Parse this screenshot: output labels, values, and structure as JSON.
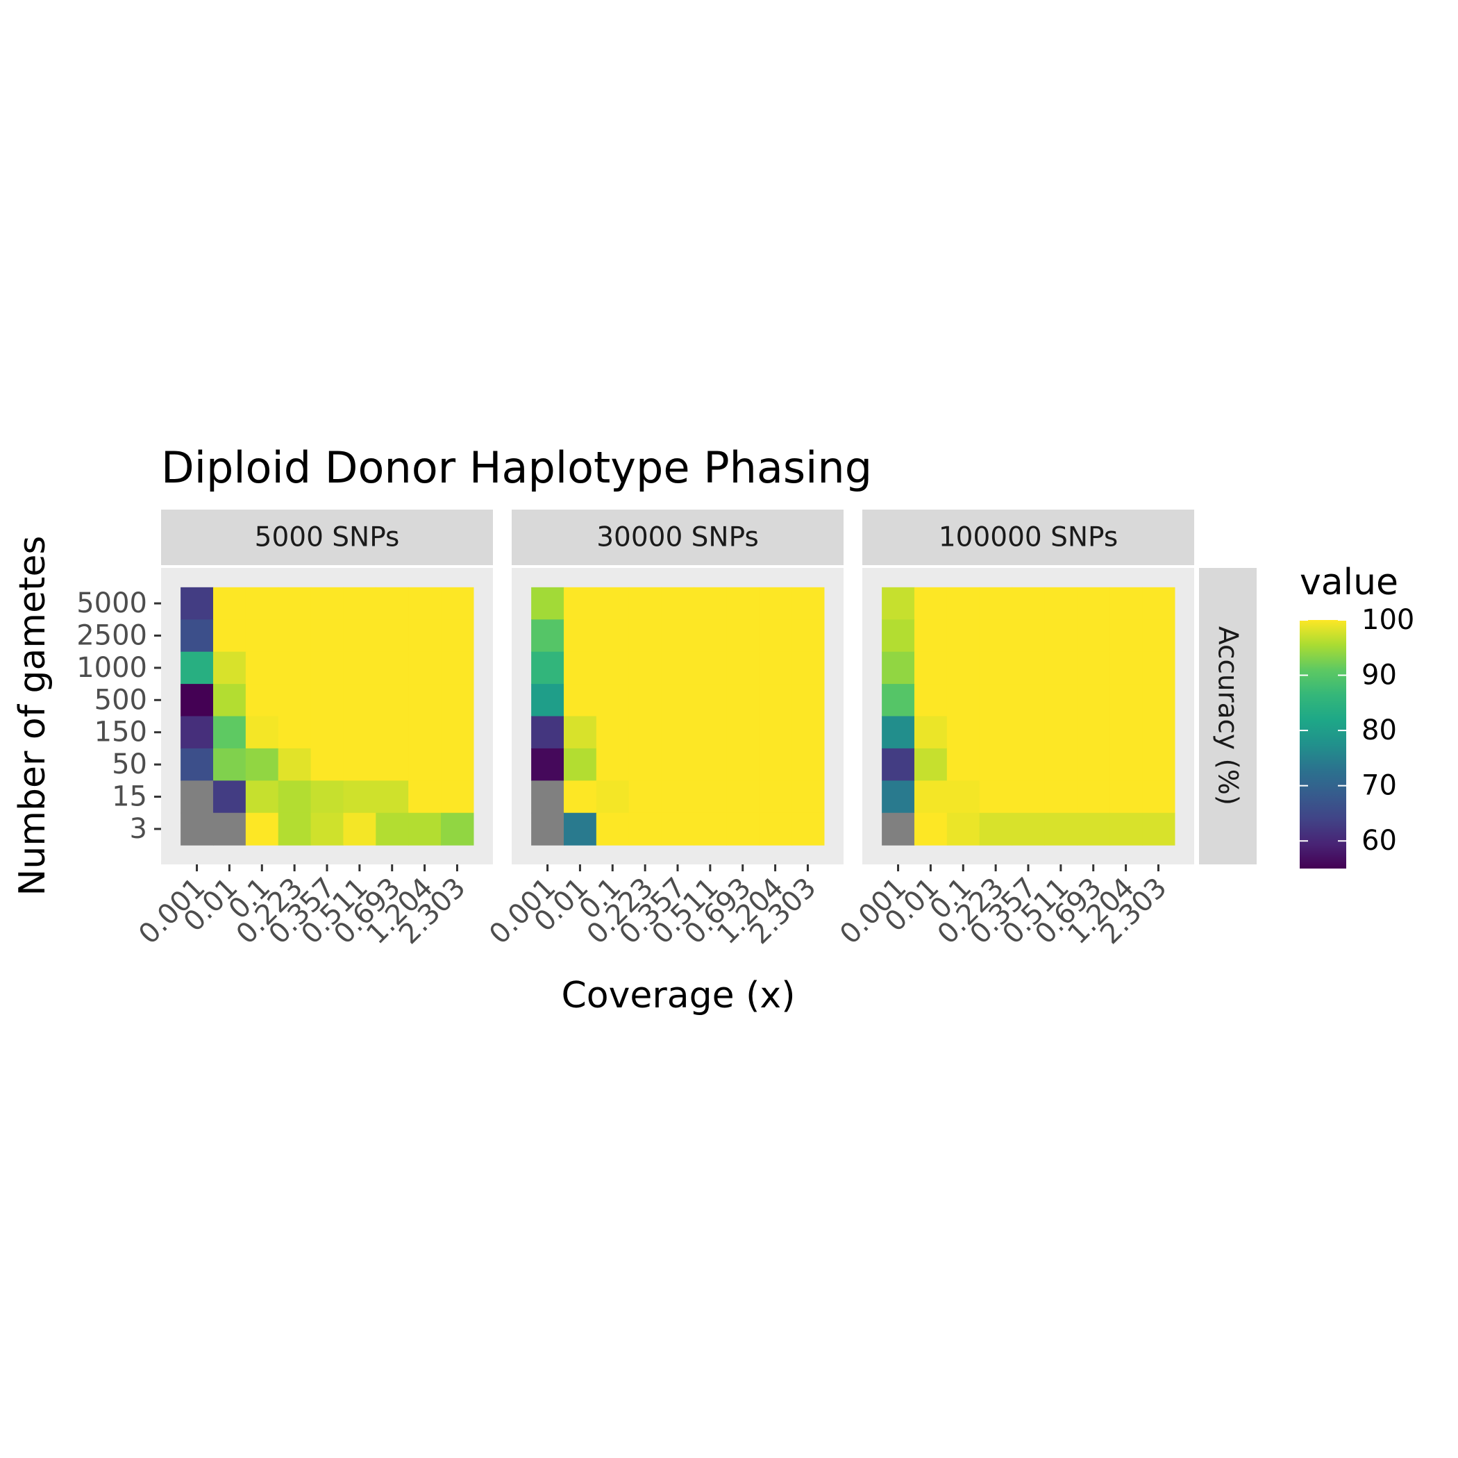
{
  "chart_data": {
    "type": "heatmap",
    "title": "Diploid Donor Haplotype Phasing",
    "xlabel": "Coverage (x)",
    "ylabel": "Number of gametes",
    "row_strip_label": "Accuracy (%)",
    "x_categories": [
      "0.001",
      "0.01",
      "0.1",
      "0.223",
      "0.357",
      "0.511",
      "0.693",
      "1.204",
      "2.303"
    ],
    "y_categories": [
      "5000",
      "2500",
      "1000",
      "500",
      "150",
      "50",
      "15",
      "3"
    ],
    "legend": {
      "title": "value",
      "ticks": [
        100,
        90,
        80,
        70,
        60
      ],
      "range": [
        55,
        100
      ],
      "palette": "viridis",
      "missing_color": "#808080"
    },
    "panels": [
      {
        "label": "5000 SNPs",
        "values": [
          [
            63,
            100,
            100,
            100,
            100,
            100,
            100,
            100,
            100
          ],
          [
            66,
            100,
            100,
            100,
            100,
            100,
            100,
            100,
            100
          ],
          [
            84,
            98,
            100,
            100,
            100,
            100,
            100,
            100,
            100
          ],
          [
            55,
            96,
            100,
            100,
            100,
            100,
            100,
            100,
            100
          ],
          [
            61,
            91,
            99.5,
            100,
            100,
            100,
            100,
            100,
            100
          ],
          [
            66,
            93,
            94,
            98.5,
            100,
            100,
            100,
            100,
            100
          ],
          [
            null,
            63,
            97,
            96,
            97,
            97.5,
            97.5,
            100,
            100
          ],
          [
            null,
            null,
            100,
            96,
            97.5,
            99.5,
            96,
            96,
            94
          ]
        ]
      },
      {
        "label": "30000 SNPs",
        "values": [
          [
            95,
            100,
            100,
            100,
            100,
            100,
            100,
            100,
            100
          ],
          [
            90,
            100,
            100,
            100,
            100,
            100,
            100,
            100,
            100
          ],
          [
            86,
            100,
            100,
            100,
            100,
            100,
            100,
            100,
            100
          ],
          [
            80,
            100,
            100,
            100,
            100,
            100,
            100,
            100,
            100
          ],
          [
            62,
            98,
            100,
            100,
            100,
            100,
            100,
            100,
            100
          ],
          [
            56,
            96,
            100,
            100,
            100,
            100,
            100,
            100,
            100
          ],
          [
            null,
            100,
            99.5,
            100,
            100,
            100,
            100,
            100,
            100
          ],
          [
            null,
            74,
            100,
            100,
            100,
            100,
            100,
            100,
            100
          ]
        ]
      },
      {
        "label": "100000 SNPs",
        "values": [
          [
            97,
            100,
            100,
            100,
            100,
            100,
            100,
            100,
            100
          ],
          [
            96,
            100,
            100,
            100,
            100,
            100,
            100,
            100,
            100
          ],
          [
            94,
            100,
            100,
            100,
            100,
            100,
            100,
            100,
            100
          ],
          [
            90,
            100,
            100,
            100,
            100,
            100,
            100,
            100,
            100
          ],
          [
            77,
            99,
            100,
            100,
            100,
            100,
            100,
            100,
            100
          ],
          [
            63,
            97,
            100,
            100,
            100,
            100,
            100,
            100,
            100
          ],
          [
            74,
            99.5,
            99.5,
            100,
            100,
            100,
            100,
            100,
            100
          ],
          [
            null,
            100,
            99,
            98,
            98,
            98,
            98,
            98,
            98
          ]
        ]
      }
    ]
  }
}
